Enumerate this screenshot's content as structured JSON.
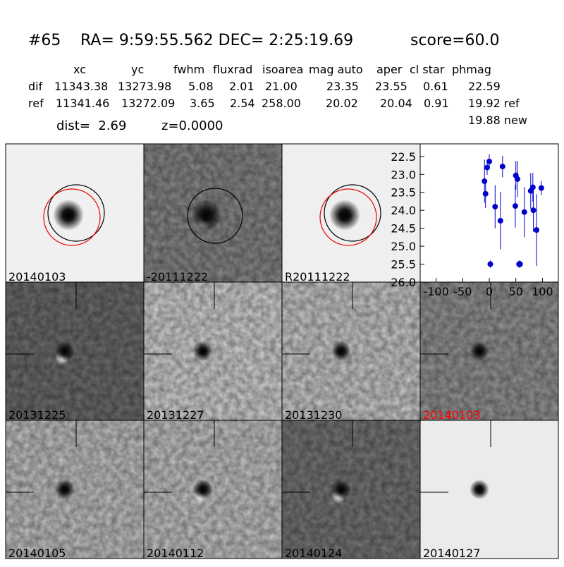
{
  "header": {
    "id": "#65",
    "coords": "RA= 9:59:55.562 DEC= 2:25:19.69",
    "score": "score=60.0"
  },
  "table": {
    "columns": [
      "xc",
      "yc",
      "fwhm",
      "fluxrad",
      "isoarea",
      "mag auto",
      "aper",
      "cl star",
      "phmag"
    ],
    "rows": [
      [
        "dif",
        "11343.38",
        "13273.98",
        "5.08",
        "2.01",
        "21.00",
        "23.35",
        "23.55",
        "0.61",
        "22.59"
      ],
      [
        "ref",
        "11341.46",
        "13272.09",
        "3.65",
        "2.54",
        "258.00",
        "20.02",
        "20.04",
        "0.91",
        "19.92 ref"
      ]
    ],
    "extra": "19.88 new"
  },
  "info": {
    "dist": "dist=  2.69",
    "z": "z=0.0000"
  },
  "panels": [
    {
      "label": "20140103"
    },
    {
      "label": "-20111222"
    },
    {
      "label": "R20111222"
    },
    {
      "label": "20131225"
    },
    {
      "label": "20131227"
    },
    {
      "label": "20131230"
    },
    {
      "label": "20140103",
      "label_color": "#ff0000"
    },
    {
      "label": "20140105"
    },
    {
      "label": "20140112"
    },
    {
      "label": "20140124"
    },
    {
      "label": "20140127"
    }
  ],
  "chart_data": {
    "type": "scatter",
    "color": "#0000cc",
    "x": [
      -9,
      -7,
      -4,
      0,
      2,
      11,
      21,
      25,
      49,
      50,
      53,
      56,
      58,
      66,
      78,
      82,
      83,
      89,
      98
    ],
    "values": [
      23.19,
      23.54,
      22.81,
      22.64,
      25.5,
      23.9,
      24.29,
      22.78,
      23.88,
      23.03,
      23.13,
      25.5,
      25.5,
      24.05,
      23.46,
      23.36,
      24.0,
      24.55,
      23.38
    ],
    "errors": [
      0.6,
      0.4,
      0.2,
      0.2,
      0.1,
      0.6,
      0.8,
      0.3,
      0.6,
      0.4,
      0.5,
      0.1,
      0.1,
      0.7,
      0.5,
      0.4,
      0.6,
      1.0,
      0.2
    ],
    "xlim": [
      -130,
      130
    ],
    "ylim": [
      26.0,
      22.15
    ],
    "y_inverted": true,
    "xticks": [
      -100,
      -50,
      0,
      50,
      100
    ],
    "yticks": [
      {
        "value": 22.5,
        "label": "22.5"
      },
      {
        "value": 23.0,
        "label": "23.0"
      },
      {
        "value": 23.5,
        "label": "23.5"
      },
      {
        "value": 24.0,
        "label": "24.0"
      },
      {
        "value": 24.5,
        "label": "24.5"
      },
      {
        "value": 25.0,
        "label": "25.0"
      },
      {
        "value": 25.5,
        "label": "25.5"
      },
      {
        "value": 26.0,
        "label": "26.0"
      }
    ]
  }
}
